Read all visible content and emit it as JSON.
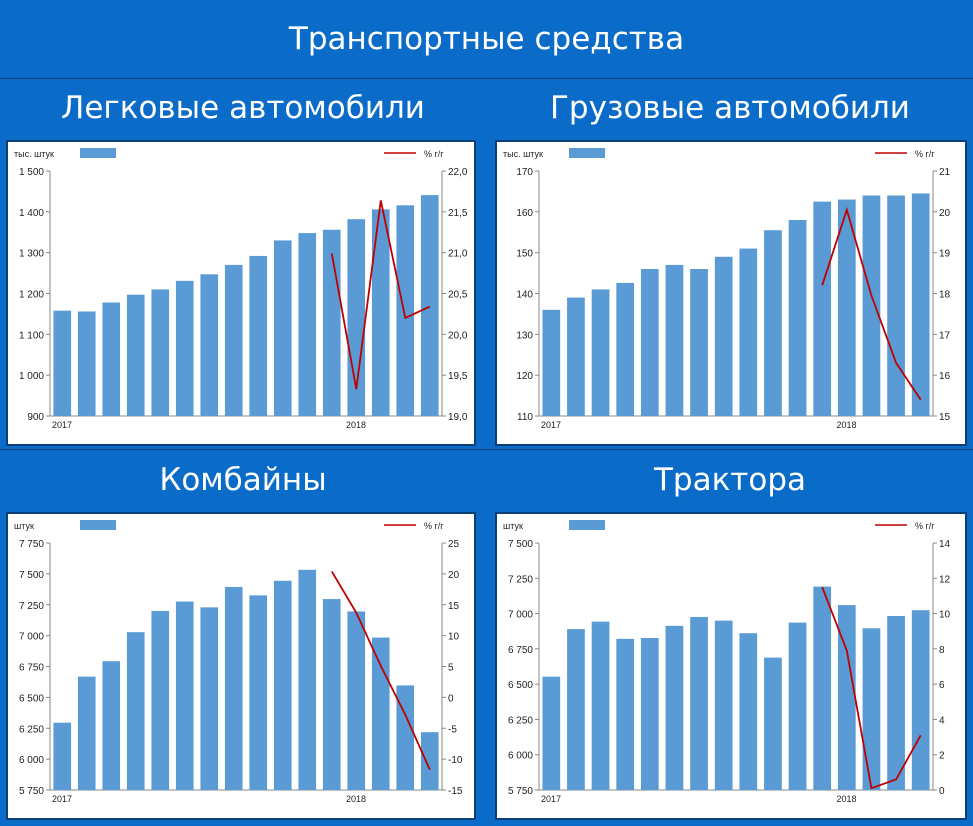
{
  "title": "Транспортные средства",
  "colors": {
    "background": "#0a6cc8",
    "bar": "#5b9bd5",
    "line": "#c00000"
  },
  "chart_data": [
    {
      "type": "bar",
      "title": "Легковые автомобили",
      "left_unit": "тыс. штук",
      "right_unit": "%  г/г",
      "x_labels": [
        {
          "index": 0,
          "text": "2017"
        },
        {
          "index": 12,
          "text": "2018"
        }
      ],
      "values": [
        1158,
        1156,
        1178,
        1197,
        1210,
        1231,
        1247,
        1270,
        1292,
        1330,
        1348,
        1356,
        1382,
        1406,
        1416,
        1441
      ],
      "line_values": [
        null,
        null,
        null,
        null,
        null,
        null,
        null,
        null,
        null,
        null,
        null,
        20.99,
        19.33,
        21.64,
        20.2,
        20.34
      ],
      "ylim": [
        900,
        1500
      ],
      "yticks": [
        900,
        1000,
        1100,
        1200,
        1300,
        1400,
        1500
      ],
      "ytick_labels": [
        "900",
        "1 000",
        "1 100",
        "1 200",
        "1 300",
        "1 400",
        "1 500"
      ],
      "y2lim": [
        19.0,
        22.0
      ],
      "y2ticks": [
        19.0,
        19.5,
        20.0,
        20.5,
        21.0,
        21.5,
        22.0
      ],
      "y2tick_labels": [
        "19,0",
        "19,5",
        "20,0",
        "20,5",
        "21,0",
        "21,5",
        "22,0"
      ]
    },
    {
      "type": "bar",
      "title": "Грузовые автомобили",
      "left_unit": "тыс. штук",
      "right_unit": "%  г/г",
      "x_labels": [
        {
          "index": 0,
          "text": "2017"
        },
        {
          "index": 12,
          "text": "2018"
        }
      ],
      "values": [
        136,
        139,
        141,
        142.6,
        146,
        147,
        146,
        149,
        151,
        155.5,
        158,
        162.5,
        163,
        164,
        164,
        164.5
      ],
      "line_values": [
        null,
        null,
        null,
        null,
        null,
        null,
        null,
        null,
        null,
        null,
        null,
        18.2,
        20.05,
        17.95,
        16.3,
        15.4
      ],
      "ylim": [
        110,
        170
      ],
      "yticks": [
        110,
        120,
        130,
        140,
        150,
        160,
        170
      ],
      "ytick_labels": [
        "110",
        "120",
        "130",
        "140",
        "150",
        "160",
        "170"
      ],
      "y2lim": [
        15,
        21
      ],
      "y2ticks": [
        15,
        16,
        17,
        18,
        19,
        20,
        21
      ],
      "y2tick_labels": [
        "15",
        "16",
        "17",
        "18",
        "19",
        "20",
        "21"
      ]
    },
    {
      "type": "bar",
      "title": "Комбайны",
      "left_unit": "штук",
      "right_unit": "%  г/г",
      "x_labels": [
        {
          "index": 0,
          "text": "2017"
        },
        {
          "index": 12,
          "text": "2018"
        }
      ],
      "values": [
        6295,
        6668,
        6793,
        7028,
        7200,
        7276,
        7229,
        7394,
        7326,
        7444,
        7533,
        7296,
        7196,
        6984,
        6597,
        6218
      ],
      "line_values": [
        null,
        null,
        null,
        null,
        null,
        null,
        null,
        null,
        null,
        null,
        null,
        20.4,
        13.7,
        5.1,
        -2.8,
        -11.7
      ],
      "ylim": [
        5750,
        7750
      ],
      "yticks": [
        5750,
        6000,
        6250,
        6500,
        6750,
        7000,
        7250,
        7500,
        7750
      ],
      "ytick_labels": [
        "5 750",
        "6 000",
        "6 250",
        "6 500",
        "6 750",
        "7 000",
        "7 250",
        "7 500",
        "7 750"
      ],
      "y2lim": [
        -15,
        25
      ],
      "y2ticks": [
        -15,
        -10,
        -5,
        0,
        5,
        10,
        15,
        20,
        25
      ],
      "y2tick_labels": [
        "-15",
        "-10",
        "-5",
        "0",
        "5",
        "10",
        "15",
        "20",
        "25"
      ]
    },
    {
      "type": "bar",
      "title": "Трактора",
      "left_unit": "штук",
      "right_unit": "%  г/г",
      "x_labels": [
        {
          "index": 0,
          "text": "2017"
        },
        {
          "index": 12,
          "text": "2018"
        }
      ],
      "values": [
        6553,
        6890,
        6943,
        6821,
        6827,
        6913,
        6976,
        6950,
        6861,
        6688,
        6936,
        7191,
        7060,
        6896,
        6983,
        7024
      ],
      "line_values": [
        null,
        null,
        null,
        null,
        null,
        null,
        null,
        null,
        null,
        null,
        null,
        11.5,
        7.9,
        0.1,
        0.6,
        3.1
      ],
      "ylim": [
        5750,
        7500
      ],
      "yticks": [
        5750,
        6000,
        6250,
        6500,
        6750,
        7000,
        7250,
        7500
      ],
      "ytick_labels": [
        "5 750",
        "6 000",
        "6 250",
        "6 500",
        "6 750",
        "7 000",
        "7 250",
        "7 500"
      ],
      "y2lim": [
        0,
        14
      ],
      "y2ticks": [
        0,
        2,
        4,
        6,
        8,
        10,
        12,
        14
      ],
      "y2tick_labels": [
        "0",
        "2",
        "4",
        "6",
        "8",
        "10",
        "12",
        "14"
      ]
    }
  ]
}
